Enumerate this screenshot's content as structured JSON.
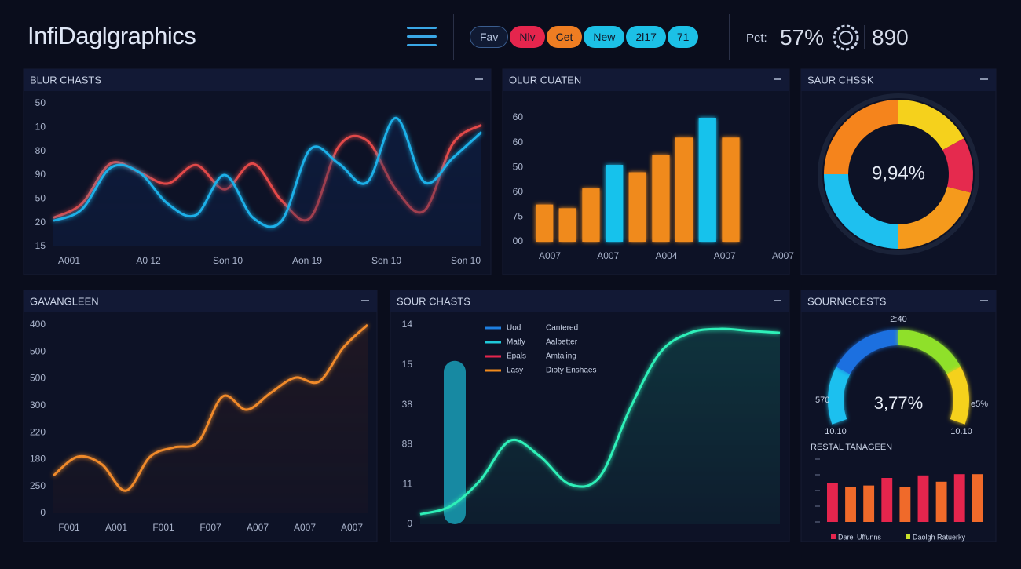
{
  "header": {
    "title": "InfiDaglgraphics",
    "tabs": [
      {
        "label": "Fav",
        "color": "#101a33"
      },
      {
        "label": "Nlv",
        "color": "#e5254d"
      },
      {
        "label": "Cet",
        "color": "#ee7d22"
      },
      {
        "label": "New",
        "color": "#1cc0e6"
      },
      {
        "label": "2l17",
        "color": "#1cc0e6"
      },
      {
        "label": "71",
        "color": "#1cc0e6"
      }
    ],
    "stat_label": "Pet:",
    "stat_percent": "57%",
    "stat_count": "890"
  },
  "chart_data": [
    {
      "type": "line",
      "title": "BLUR CHASTS",
      "fill": "#0f2a5c",
      "y_labels": [
        "50",
        "10",
        "80",
        "90",
        "50",
        "20",
        "15"
      ],
      "x_labels": [
        "A001",
        "A0 12",
        "Son 10",
        "Aon 19",
        "Son 10",
        "Son 10"
      ],
      "ylim": [
        0,
        100
      ],
      "series": [
        {
          "color": "#e24a4a",
          "values": [
            20,
            30,
            58,
            52,
            44,
            57,
            40,
            58,
            32,
            20,
            70,
            74,
            40,
            25,
            72,
            85
          ]
        },
        {
          "color": "#1fb0e8",
          "values": [
            18,
            26,
            55,
            52,
            30,
            22,
            50,
            20,
            18,
            68,
            58,
            45,
            90,
            45,
            62,
            80
          ]
        }
      ]
    },
    {
      "type": "bar",
      "title": "OLUR CUATEN",
      "y_labels": [
        "60",
        "60",
        "50",
        "60",
        "75",
        "00"
      ],
      "x_labels": [
        "A007",
        "A007",
        "A004",
        "A007",
        "A007"
      ],
      "ylim": [
        0,
        100
      ],
      "values": [
        30,
        27,
        43,
        62,
        56,
        70,
        84,
        100,
        84
      ],
      "colors": [
        "#f08a1c",
        "#f08a1c",
        "#f08a1c",
        "#19c2ec",
        "#f08a1c",
        "#f08a1c",
        "#f08a1c",
        "#19c2ec",
        "#f08a1c"
      ]
    },
    {
      "type": "donut",
      "title": "SAUR CHSSK",
      "center_label": "9,94%",
      "values": [
        17,
        12,
        21,
        25,
        25
      ],
      "colors": [
        "#f5d11c",
        "#e52a4e",
        "#f59a1c",
        "#1ec0ef",
        "#f5841c"
      ]
    },
    {
      "type": "line",
      "title": "GAVANGLEEN",
      "fill": "#5a2a1a",
      "y_labels": [
        "400",
        "500",
        "500",
        "300",
        "220",
        "180",
        "250",
        "0"
      ],
      "x_labels": [
        "F001",
        "A001",
        "F001",
        "F007",
        "A007",
        "A007",
        "A007"
      ],
      "ylim": [
        0,
        100
      ],
      "series": [
        {
          "color": "#f08a2a",
          "values": [
            20,
            30,
            26,
            12,
            30,
            35,
            38,
            62,
            55,
            64,
            72,
            70,
            88,
            100
          ]
        }
      ]
    },
    {
      "type": "line",
      "title": "SOUR CHASTS",
      "fill": "#19a88f",
      "y_labels": [
        "14",
        "15",
        "38",
        "88",
        "11",
        "0"
      ],
      "ylim": [
        0,
        100
      ],
      "bars": [
        {
          "color": "#1a9fb8",
          "value": 82
        }
      ],
      "legend": [
        {
          "color": "#1e7fe0",
          "name": "Uod",
          "note": "Cantered"
        },
        {
          "color": "#1fc8d8",
          "name": "Matly",
          "note": "Aalbetter"
        },
        {
          "color": "#e5254d",
          "name": "Epals",
          "note": "Amtaling"
        },
        {
          "color": "#f08a1c",
          "name": "Lasy",
          "note": "Dioty Enshaes"
        }
      ],
      "series": [
        {
          "color": "#2ff0b8",
          "values": [
            5,
            9,
            22,
            42,
            34,
            20,
            24,
            58,
            86,
            96,
            98,
            97,
            96
          ]
        }
      ]
    },
    {
      "type": "gauge",
      "title": "SOURNGCESTS",
      "center_label": "3,77%",
      "top_label": "2:40",
      "left_label": "570",
      "right_label": "e5%",
      "bottom_left_label": "10.10",
      "bottom_right_label": "10.10",
      "values": [
        22,
        28,
        28,
        22
      ],
      "colors": [
        "#1ec0ef",
        "#1e6fe0",
        "#8fe02a",
        "#f5d11c"
      ],
      "sub": {
        "title": "RESTAL TANAGEEN",
        "ylim": [
          0,
          100
        ],
        "values": [
          62,
          55,
          58,
          70,
          55,
          74,
          64,
          76,
          76
        ],
        "colors": [
          "#e5254d",
          "#f06a2a",
          "#f06a2a",
          "#e5254d",
          "#f06a2a",
          "#e5254d",
          "#f06a2a",
          "#e5254d",
          "#f06a2a"
        ],
        "legend": [
          {
            "color": "#e5254d",
            "name": "Darel Uffunns"
          },
          {
            "color": "#c8e02a",
            "name": "Daolgh Ratuerky"
          }
        ]
      }
    }
  ]
}
